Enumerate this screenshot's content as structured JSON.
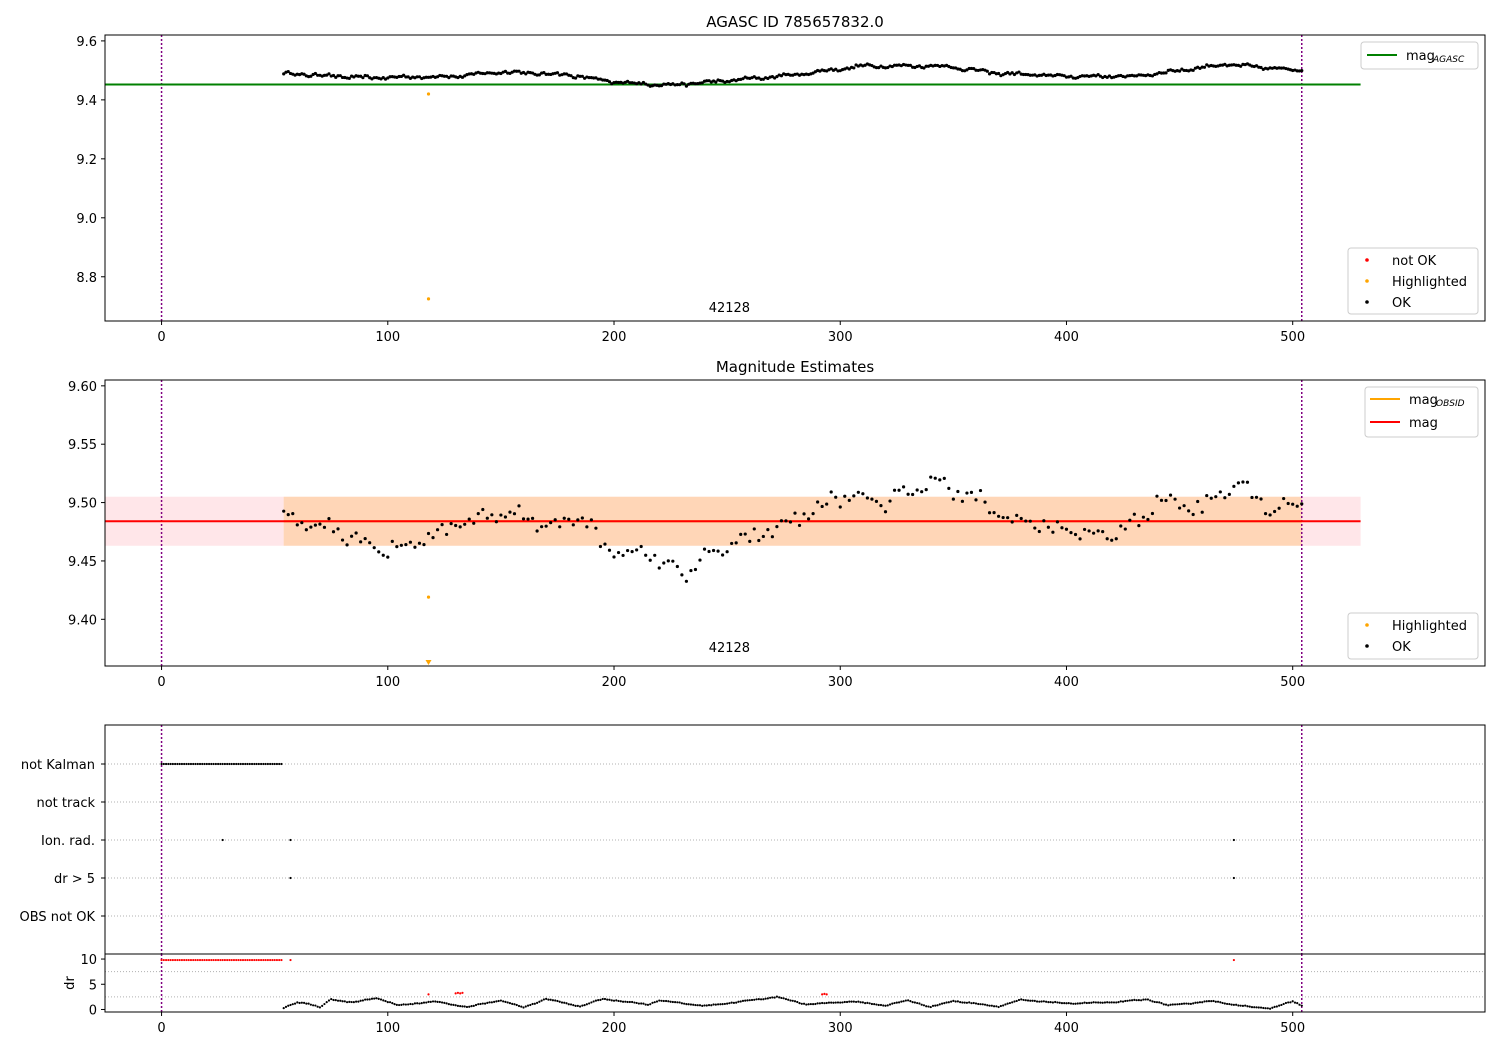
{
  "chart_data": [
    {
      "type": "scatter",
      "title": "AGASC ID 785657832.0",
      "xlim": [
        -25,
        585
      ],
      "ylim": [
        8.65,
        9.62
      ],
      "xticks": [
        0,
        100,
        200,
        300,
        400,
        500
      ],
      "yticks": [
        8.8,
        9.0,
        9.2,
        9.4,
        9.6
      ],
      "ytick_labels": [
        "8.8",
        "9.0",
        "9.2",
        "9.4",
        "9.6"
      ],
      "vlines": [
        0,
        504
      ],
      "obsid_label": {
        "text": "42128",
        "x": 251,
        "y": 8.68
      },
      "lines": [
        {
          "name": "mag_AGASC",
          "label_main": "mag",
          "label_sub": "AGASC",
          "y": 9.452,
          "x": [
            -25,
            530
          ],
          "color": "#008000"
        }
      ],
      "legend_lines_position": "upper right",
      "legend_points_position": "lower right",
      "legend_points": [
        {
          "label": "not OK",
          "color": "#ff0000"
        },
        {
          "label": "Highlighted",
          "color": "#ffa500"
        },
        {
          "label": "OK",
          "color": "#000000"
        }
      ],
      "series": [
        {
          "name": "OK",
          "color": "#000000",
          "x_start": 54,
          "x_end": 504,
          "x_step": 1,
          "trend": [
            [
              54,
              9.49
            ],
            [
              90,
              9.475
            ],
            [
              130,
              9.48
            ],
            [
              150,
              9.495
            ],
            [
              180,
              9.485
            ],
            [
              200,
              9.46
            ],
            [
              225,
              9.45
            ],
            [
              250,
              9.465
            ],
            [
              280,
              9.485
            ],
            [
              310,
              9.515
            ],
            [
              345,
              9.515
            ],
            [
              370,
              9.49
            ],
            [
              400,
              9.48
            ],
            [
              430,
              9.48
            ],
            [
              450,
              9.5
            ],
            [
              470,
              9.52
            ],
            [
              504,
              9.5
            ]
          ],
          "noise": 0.006
        },
        {
          "name": "Highlighted",
          "color": "#ffa500",
          "x": [
            118,
            118
          ],
          "y": [
            9.42,
            8.725
          ]
        }
      ]
    },
    {
      "type": "scatter",
      "title": "Magnitude Estimates",
      "xlim": [
        -25,
        585
      ],
      "ylim": [
        9.36,
        9.605
      ],
      "xticks": [
        0,
        100,
        200,
        300,
        400,
        500
      ],
      "yticks": [
        9.4,
        9.45,
        9.5,
        9.55,
        9.6
      ],
      "ytick_labels": [
        "9.40",
        "9.45",
        "9.50",
        "9.55",
        "9.60"
      ],
      "vlines": [
        0,
        504
      ],
      "obsid_label": {
        "text": "42128",
        "x": 251,
        "y": 9.372
      },
      "bands": [
        {
          "y0": 9.463,
          "y1": 9.505,
          "x": [
            -25,
            530
          ],
          "color": "#ffb6c1",
          "opacity": 0.35
        },
        {
          "y0": 9.463,
          "y1": 9.505,
          "x": [
            54,
            504
          ],
          "color": "#ffb347",
          "opacity": 0.3
        }
      ],
      "lines": [
        {
          "name": "mag_OBSID",
          "label_main": "mag",
          "label_sub": "OBSID",
          "y": 9.484,
          "x": [
            54,
            504
          ],
          "color": "#ffa500"
        },
        {
          "name": "mag",
          "label_main": "mag",
          "label_sub": "",
          "y": 9.484,
          "x": [
            -25,
            530
          ],
          "color": "#ff0000"
        }
      ],
      "legend_lines_position": "upper right",
      "legend_points_position": "lower right",
      "legend_points": [
        {
          "label": "Highlighted",
          "color": "#ffa500"
        },
        {
          "label": "OK",
          "color": "#000000"
        }
      ],
      "series": [
        {
          "name": "OK",
          "color": "#000000",
          "x_start": 54,
          "x_end": 504,
          "x_step": 2,
          "trend": [
            [
              54,
              9.49
            ],
            [
              80,
              9.475
            ],
            [
              100,
              9.46
            ],
            [
              115,
              9.465
            ],
            [
              130,
              9.48
            ],
            [
              150,
              9.492
            ],
            [
              175,
              9.48
            ],
            [
              185,
              9.49
            ],
            [
              195,
              9.462
            ],
            [
              215,
              9.455
            ],
            [
              230,
              9.44
            ],
            [
              250,
              9.462
            ],
            [
              265,
              9.472
            ],
            [
              285,
              9.49
            ],
            [
              300,
              9.505
            ],
            [
              320,
              9.5
            ],
            [
              340,
              9.515
            ],
            [
              360,
              9.505
            ],
            [
              375,
              9.485
            ],
            [
              400,
              9.475
            ],
            [
              420,
              9.472
            ],
            [
              435,
              9.485
            ],
            [
              440,
              9.505
            ],
            [
              460,
              9.495
            ],
            [
              475,
              9.52
            ],
            [
              490,
              9.495
            ],
            [
              504,
              9.5
            ]
          ],
          "noise": 0.008
        },
        {
          "name": "Highlighted",
          "color": "#ffa500",
          "x": [
            118
          ],
          "y": [
            9.419
          ]
        }
      ]
    },
    {
      "type": "scatter",
      "title": "",
      "xlim": [
        -25,
        585
      ],
      "xticks": [
        0,
        100,
        200,
        300,
        400,
        500
      ],
      "vlines": [
        0,
        504
      ],
      "categories": [
        "not Kalman",
        "not track",
        "Ion. rad.",
        "dr > 5",
        "OBS not OK"
      ],
      "flags": [
        {
          "category": "not Kalman",
          "x_start": 0,
          "x_end": 53,
          "x_step": 1
        },
        {
          "category": "not track",
          "x": []
        },
        {
          "category": "Ion. rad.",
          "x": [
            27,
            57,
            474
          ]
        },
        {
          "category": "dr > 5",
          "x": [
            57,
            474
          ]
        },
        {
          "category": "OBS not OK",
          "x": []
        }
      ]
    },
    {
      "type": "scatter",
      "ylabel": "dr",
      "xlim": [
        -25,
        585
      ],
      "ylim": [
        -0.5,
        11
      ],
      "yticks": [
        0,
        5,
        10
      ],
      "ytick_labels": [
        "0",
        "5",
        "10"
      ],
      "xticks": [
        0,
        100,
        200,
        300,
        400,
        500
      ],
      "vlines": [
        0,
        504
      ],
      "series": [
        {
          "name": "dr high",
          "color": "#ff0000",
          "x_start": 0,
          "x_end": 53,
          "x_step": 1,
          "y_const": 9.8,
          "extra_x": [
            57,
            474
          ],
          "extra_y": [
            9.8,
            9.8
          ]
        },
        {
          "name": "dr red",
          "color": "#ff0000",
          "x": [
            118,
            130,
            131,
            132,
            133,
            292,
            293,
            294
          ],
          "y": [
            3.0,
            3.2,
            3.3,
            3.2,
            3.3,
            3.0,
            3.1,
            3.0
          ]
        },
        {
          "name": "dr OK",
          "color": "#000000",
          "x_start": 54,
          "x_end": 504,
          "x_step": 1,
          "trend": [
            [
              54,
              0.3
            ],
            [
              60,
              1.4
            ],
            [
              65,
              1.2
            ],
            [
              70,
              0.4
            ],
            [
              75,
              2.0
            ],
            [
              85,
              1.4
            ],
            [
              95,
              2.3
            ],
            [
              105,
              0.8
            ],
            [
              120,
              1.6
            ],
            [
              135,
              0.5
            ],
            [
              150,
              1.8
            ],
            [
              160,
              0.4
            ],
            [
              170,
              2.1
            ],
            [
              185,
              0.6
            ],
            [
              195,
              2.1
            ],
            [
              215,
              1.0
            ],
            [
              220,
              1.8
            ],
            [
              240,
              0.7
            ],
            [
              255,
              1.5
            ],
            [
              272,
              2.5
            ],
            [
              285,
              1.0
            ],
            [
              305,
              1.6
            ],
            [
              320,
              0.8
            ],
            [
              330,
              1.8
            ],
            [
              340,
              0.5
            ],
            [
              350,
              1.7
            ],
            [
              370,
              0.6
            ],
            [
              380,
              1.9
            ],
            [
              400,
              1.2
            ],
            [
              420,
              1.4
            ],
            [
              436,
              2.0
            ],
            [
              445,
              0.8
            ],
            [
              465,
              1.7
            ],
            [
              470,
              1.2
            ],
            [
              482,
              0.5
            ],
            [
              490,
              0.2
            ],
            [
              500,
              1.6
            ],
            [
              504,
              0.8
            ]
          ],
          "noise": 0.1
        }
      ]
    }
  ]
}
